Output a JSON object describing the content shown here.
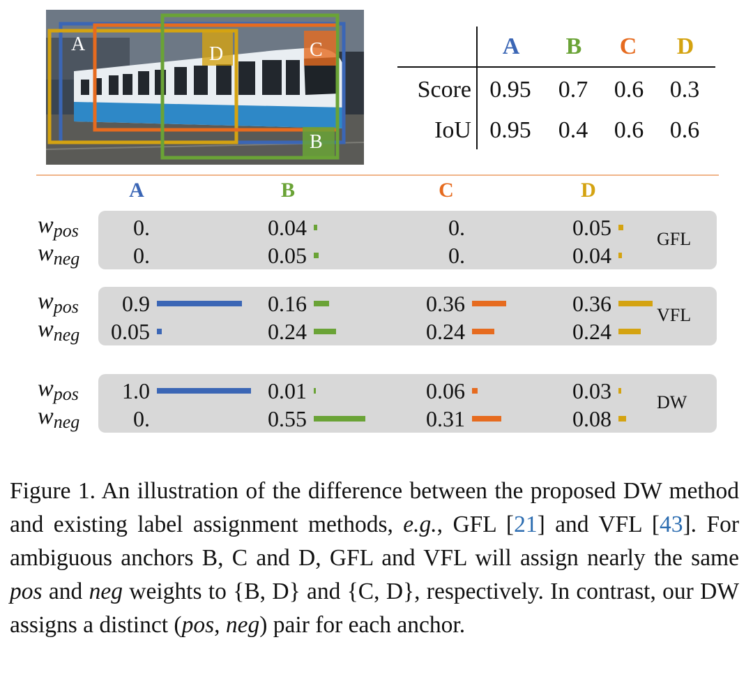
{
  "colors": {
    "A": "#3b66b5",
    "B": "#6aa336",
    "C": "#e66b1f",
    "D": "#d4a311"
  },
  "photo": {
    "description_icon": "tram-photo",
    "box_labels": {
      "A": "A",
      "B": "B",
      "C": "C",
      "D": "D"
    }
  },
  "score_table": {
    "headers": [
      "A",
      "B",
      "C",
      "D"
    ],
    "rows": [
      {
        "label": "Score",
        "values": [
          "0.95",
          "0.7",
          "0.6",
          "0.3"
        ]
      },
      {
        "label": "IoU",
        "values": [
          "0.95",
          "0.4",
          "0.6",
          "0.6"
        ]
      }
    ]
  },
  "weights": {
    "column_headers": [
      "A",
      "B",
      "C",
      "D"
    ],
    "label_pos": "w",
    "label_pos_sub": "pos",
    "label_neg": "w",
    "label_neg_sub": "neg",
    "methods": [
      {
        "name": "GFL",
        "pos": [
          "0.",
          "0.04",
          "0.",
          "0.05"
        ],
        "neg": [
          "0.",
          "0.05",
          "0.",
          "0.04"
        ]
      },
      {
        "name": "VFL",
        "pos": [
          "0.9",
          "0.16",
          "0.36",
          "0.36"
        ],
        "neg": [
          "0.05",
          "0.24",
          "0.24",
          "0.24"
        ]
      },
      {
        "name": "DW",
        "pos": [
          "1.0",
          "0.01",
          "0.06",
          "0.03"
        ],
        "neg": [
          "0.",
          "0.55",
          "0.31",
          "0.08"
        ]
      }
    ]
  },
  "caption": {
    "part1": "Figure 1.  An illustration of the difference between the proposed DW method and existing label assignment methods, ",
    "eg": "e.g.",
    "part2": ", GFL [",
    "ref1": "21",
    "part3": "] and VFL [",
    "ref2": "43",
    "part4": "]. For ambiguous anchors B, C and D, GFL and VFL will assign nearly the same ",
    "pos": "pos",
    "part5": " and ",
    "neg": "neg",
    "part6": " weights to {B, D} and {C, D}, respectively. In contrast, our DW assigns a distinct (",
    "pos2": "pos",
    "part7": ", ",
    "neg2": "neg",
    "part8": ") pair for each anchor."
  }
}
